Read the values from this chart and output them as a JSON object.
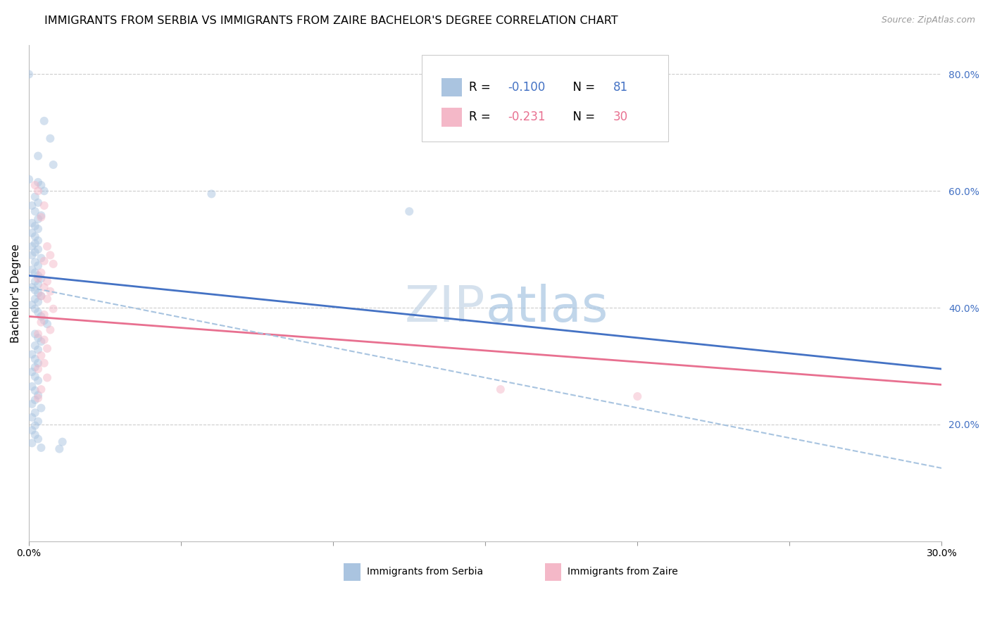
{
  "title": "IMMIGRANTS FROM SERBIA VS IMMIGRANTS FROM ZAIRE BACHELOR'S DEGREE CORRELATION CHART",
  "source": "Source: ZipAtlas.com",
  "ylabel": "Bachelor's Degree",
  "xlim": [
    0.0,
    0.3
  ],
  "ylim": [
    0.0,
    0.85
  ],
  "serbia_color": "#aac4e0",
  "zaire_color": "#f4b8c8",
  "serbia_line_color": "#4472c4",
  "zaire_line_color": "#e87090",
  "dashed_line_color": "#a8c4e0",
  "serbia_scatter": [
    [
      0.0,
      0.8
    ],
    [
      0.005,
      0.72
    ],
    [
      0.007,
      0.69
    ],
    [
      0.003,
      0.66
    ],
    [
      0.008,
      0.645
    ],
    [
      0.0,
      0.62
    ],
    [
      0.003,
      0.615
    ],
    [
      0.004,
      0.61
    ],
    [
      0.005,
      0.6
    ],
    [
      0.002,
      0.59
    ],
    [
      0.003,
      0.58
    ],
    [
      0.001,
      0.575
    ],
    [
      0.002,
      0.565
    ],
    [
      0.004,
      0.558
    ],
    [
      0.003,
      0.552
    ],
    [
      0.001,
      0.545
    ],
    [
      0.002,
      0.54
    ],
    [
      0.003,
      0.535
    ],
    [
      0.001,
      0.528
    ],
    [
      0.002,
      0.522
    ],
    [
      0.003,
      0.515
    ],
    [
      0.002,
      0.51
    ],
    [
      0.001,
      0.505
    ],
    [
      0.003,
      0.5
    ],
    [
      0.002,
      0.495
    ],
    [
      0.001,
      0.49
    ],
    [
      0.004,
      0.485
    ],
    [
      0.002,
      0.478
    ],
    [
      0.003,
      0.472
    ],
    [
      0.001,
      0.465
    ],
    [
      0.002,
      0.46
    ],
    [
      0.003,
      0.455
    ],
    [
      0.004,
      0.45
    ],
    [
      0.002,
      0.445
    ],
    [
      0.003,
      0.44
    ],
    [
      0.001,
      0.435
    ],
    [
      0.002,
      0.43
    ],
    [
      0.003,
      0.425
    ],
    [
      0.004,
      0.42
    ],
    [
      0.002,
      0.415
    ],
    [
      0.003,
      0.41
    ],
    [
      0.001,
      0.405
    ],
    [
      0.002,
      0.398
    ],
    [
      0.003,
      0.392
    ],
    [
      0.004,
      0.385
    ],
    [
      0.005,
      0.378
    ],
    [
      0.006,
      0.372
    ],
    [
      0.002,
      0.355
    ],
    [
      0.003,
      0.348
    ],
    [
      0.004,
      0.342
    ],
    [
      0.002,
      0.335
    ],
    [
      0.003,
      0.328
    ],
    [
      0.001,
      0.32
    ],
    [
      0.002,
      0.312
    ],
    [
      0.003,
      0.305
    ],
    [
      0.002,
      0.298
    ],
    [
      0.001,
      0.29
    ],
    [
      0.002,
      0.282
    ],
    [
      0.003,
      0.275
    ],
    [
      0.001,
      0.265
    ],
    [
      0.002,
      0.258
    ],
    [
      0.003,
      0.25
    ],
    [
      0.002,
      0.242
    ],
    [
      0.001,
      0.235
    ],
    [
      0.004,
      0.228
    ],
    [
      0.002,
      0.22
    ],
    [
      0.001,
      0.212
    ],
    [
      0.003,
      0.205
    ],
    [
      0.002,
      0.198
    ],
    [
      0.001,
      0.19
    ],
    [
      0.002,
      0.182
    ],
    [
      0.003,
      0.175
    ],
    [
      0.001,
      0.168
    ],
    [
      0.004,
      0.16
    ],
    [
      0.01,
      0.158
    ],
    [
      0.011,
      0.17
    ],
    [
      0.06,
      0.595
    ],
    [
      0.125,
      0.565
    ]
  ],
  "zaire_scatter": [
    [
      0.002,
      0.61
    ],
    [
      0.003,
      0.6
    ],
    [
      0.005,
      0.575
    ],
    [
      0.004,
      0.555
    ],
    [
      0.006,
      0.505
    ],
    [
      0.007,
      0.49
    ],
    [
      0.005,
      0.48
    ],
    [
      0.008,
      0.475
    ],
    [
      0.004,
      0.46
    ],
    [
      0.003,
      0.45
    ],
    [
      0.006,
      0.445
    ],
    [
      0.005,
      0.435
    ],
    [
      0.007,
      0.428
    ],
    [
      0.004,
      0.42
    ],
    [
      0.006,
      0.415
    ],
    [
      0.008,
      0.398
    ],
    [
      0.005,
      0.388
    ],
    [
      0.004,
      0.375
    ],
    [
      0.007,
      0.362
    ],
    [
      0.003,
      0.355
    ],
    [
      0.005,
      0.345
    ],
    [
      0.006,
      0.33
    ],
    [
      0.004,
      0.318
    ],
    [
      0.005,
      0.305
    ],
    [
      0.003,
      0.295
    ],
    [
      0.006,
      0.28
    ],
    [
      0.004,
      0.26
    ],
    [
      0.003,
      0.245
    ],
    [
      0.155,
      0.26
    ],
    [
      0.2,
      0.248
    ]
  ],
  "serbia_reg": [
    0.455,
    0.295
  ],
  "zaire_reg": [
    0.385,
    0.268
  ],
  "dashed_reg": [
    0.435,
    0.125
  ],
  "background_color": "#ffffff",
  "grid_color": "#cccccc",
  "title_fontsize": 11.5,
  "axis_label_fontsize": 11,
  "tick_fontsize": 10,
  "legend_fontsize": 12,
  "marker_size": 75,
  "marker_alpha": 0.5
}
